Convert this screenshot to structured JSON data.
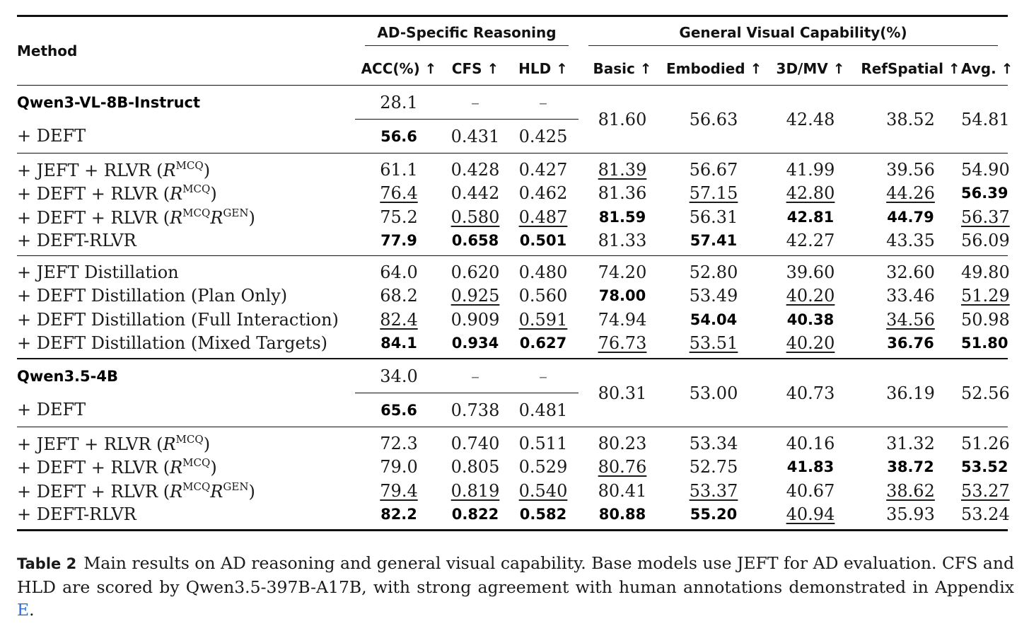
{
  "header": {
    "method": "Method",
    "group_ad": "AD-Specific Reasoning",
    "group_general": "General Visual Capability(%)",
    "columns": [
      "ACC(%) ↑",
      "CFS ↑",
      "HLD ↑",
      "Basic ↑",
      "Embodied ↑",
      "3D/MV ↑",
      "RefSpatial ↑",
      "Avg. ↑"
    ]
  },
  "blocks": [
    {
      "base": {
        "name": "Qwen3-VL-8B-Instruct",
        "acc": "28.1",
        "cfs": "–",
        "hld": "–"
      },
      "deft": {
        "name": "+ DEFT",
        "acc": "56.6",
        "cfs": "0.431",
        "hld": "0.425"
      },
      "shared": [
        "81.60",
        "56.63",
        "42.48",
        "38.52",
        "54.81"
      ],
      "rlvr": [
        {
          "pre": "+ JEFT + RLVR (",
          "sup1": "MCQ",
          "sup2": "",
          "post": ")",
          "vals": [
            "61.1",
            "0.428",
            "0.427",
            "81.39",
            "56.67",
            "41.99",
            "39.56",
            "54.90"
          ],
          "fmt": [
            "",
            "",
            "",
            "u",
            "",
            "",
            "",
            ""
          ]
        },
        {
          "pre": "+ DEFT + RLVR (",
          "sup1": "MCQ",
          "sup2": "",
          "post": ")",
          "vals": [
            "76.4",
            "0.442",
            "0.462",
            "81.36",
            "57.15",
            "42.80",
            "44.26",
            "56.39"
          ],
          "fmt": [
            "u",
            "",
            "",
            "",
            "u",
            "u",
            "u",
            "b"
          ]
        },
        {
          "pre": "+ DEFT + RLVR (",
          "sup1": "MCQ",
          "sup2": "GEN",
          "post": ")",
          "vals": [
            "75.2",
            "0.580",
            "0.487",
            "81.59",
            "56.31",
            "42.81",
            "44.79",
            "56.37"
          ],
          "fmt": [
            "",
            "u",
            "u",
            "b",
            "",
            "b",
            "b",
            "u"
          ]
        },
        {
          "pre": "+ DEFT-RLVR",
          "sup1": "",
          "sup2": "",
          "post": "",
          "vals": [
            "77.9",
            "0.658",
            "0.501",
            "81.33",
            "57.41",
            "42.27",
            "43.35",
            "56.09"
          ],
          "fmt": [
            "b",
            "b",
            "b",
            "",
            "b",
            "",
            "",
            ""
          ]
        }
      ],
      "distill": [
        {
          "name": "+ JEFT Distillation",
          "vals": [
            "64.0",
            "0.620",
            "0.480",
            "74.20",
            "52.80",
            "39.60",
            "32.60",
            "49.80"
          ],
          "fmt": [
            "",
            "",
            "",
            "",
            "",
            "",
            "",
            ""
          ]
        },
        {
          "name": "+ DEFT Distillation (Plan Only)",
          "vals": [
            "68.2",
            "0.925",
            "0.560",
            "78.00",
            "53.49",
            "40.20",
            "33.46",
            "51.29"
          ],
          "fmt": [
            "",
            "u",
            "",
            "b",
            "",
            "u",
            "",
            "u"
          ]
        },
        {
          "name": "+ DEFT Distillation (Full Interaction)",
          "vals": [
            "82.4",
            "0.909",
            "0.591",
            "74.94",
            "54.04",
            "40.38",
            "34.56",
            "50.98"
          ],
          "fmt": [
            "u",
            "",
            "u",
            "",
            "b",
            "b",
            "u",
            ""
          ]
        },
        {
          "name": "+ DEFT Distillation (Mixed Targets)",
          "vals": [
            "84.1",
            "0.934",
            "0.627",
            "76.73",
            "53.51",
            "40.20",
            "36.76",
            "51.80"
          ],
          "fmt": [
            "b",
            "b",
            "b",
            "u",
            "u",
            "u",
            "b",
            "b"
          ]
        }
      ]
    },
    {
      "base": {
        "name": "Qwen3.5-4B",
        "acc": "34.0",
        "cfs": "–",
        "hld": "–"
      },
      "deft": {
        "name": "+ DEFT",
        "acc": "65.6",
        "cfs": "0.738",
        "hld": "0.481"
      },
      "shared": [
        "80.31",
        "53.00",
        "40.73",
        "36.19",
        "52.56"
      ],
      "rlvr": [
        {
          "pre": "+ JEFT + RLVR (",
          "sup1": "MCQ",
          "sup2": "",
          "post": ")",
          "vals": [
            "72.3",
            "0.740",
            "0.511",
            "80.23",
            "53.34",
            "40.16",
            "31.32",
            "51.26"
          ],
          "fmt": [
            "",
            "",
            "",
            "",
            "",
            "",
            "",
            ""
          ]
        },
        {
          "pre": "+ DEFT + RLVR (",
          "sup1": "MCQ",
          "sup2": "",
          "post": ")",
          "vals": [
            "79.0",
            "0.805",
            "0.529",
            "80.76",
            "52.75",
            "41.83",
            "38.72",
            "53.52"
          ],
          "fmt": [
            "",
            "",
            "",
            "u",
            "",
            "b",
            "b",
            "b"
          ]
        },
        {
          "pre": "+ DEFT + RLVR (",
          "sup1": "MCQ",
          "sup2": "GEN",
          "post": ")",
          "vals": [
            "79.4",
            "0.819",
            "0.540",
            "80.41",
            "53.37",
            "40.67",
            "38.62",
            "53.27"
          ],
          "fmt": [
            "u",
            "u",
            "u",
            "",
            "u",
            "",
            "u",
            "u"
          ]
        },
        {
          "pre": "+ DEFT-RLVR",
          "sup1": "",
          "sup2": "",
          "post": "",
          "vals": [
            "82.2",
            "0.822",
            "0.582",
            "80.88",
            "55.20",
            "40.94",
            "35.93",
            "53.24"
          ],
          "fmt": [
            "b",
            "b",
            "b",
            "b",
            "b",
            "u",
            "",
            ""
          ]
        }
      ],
      "distill": []
    }
  ],
  "caption": {
    "label": "Table 2",
    "text": "Main results on AD reasoning and general visual capability. Base models use JEFT for AD evaluation. CFS and HLD are scored by Qwen3.5-397B-A17B, with strong agreement with human annotations demonstrated in Appendix",
    "link": "E",
    "end": "."
  }
}
